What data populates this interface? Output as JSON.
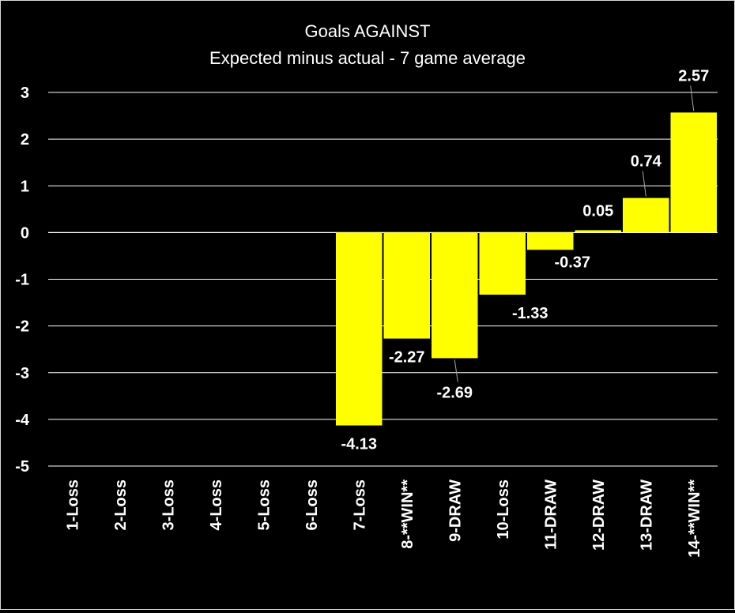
{
  "chart_data": {
    "type": "bar",
    "title": "Goals AGAINST",
    "subtitle": "Expected minus actual - 7 game average",
    "xlabel": "",
    "ylabel": "",
    "ylim": [
      -5,
      3
    ],
    "yticks": [
      3,
      2,
      1,
      0,
      -1,
      -2,
      -3,
      -4,
      -5
    ],
    "grid": true,
    "categories": [
      "1-Loss",
      "2-Loss",
      "3-Loss",
      "4-Loss",
      "5-Loss",
      "6-Loss",
      "7-Loss",
      "8-**WIN**",
      "9-DRAW",
      "10-Loss",
      "11-DRAW",
      "12-DRAW",
      "13-DRAW",
      "14-**WIN**"
    ],
    "values": [
      null,
      null,
      null,
      null,
      null,
      null,
      -4.13,
      -2.27,
      -2.69,
      -1.33,
      -0.37,
      0.05,
      0.74,
      2.57
    ],
    "data_labels": [
      null,
      null,
      null,
      null,
      null,
      null,
      "-4.13",
      "-2.27",
      "-2.69",
      "-1.33",
      "-0.37",
      "0.05",
      "0.74",
      "2.57"
    ],
    "bar_color": "#ffff00",
    "background": "#000000",
    "text_color": "#ffffff",
    "grid_color": "#ffffff"
  }
}
